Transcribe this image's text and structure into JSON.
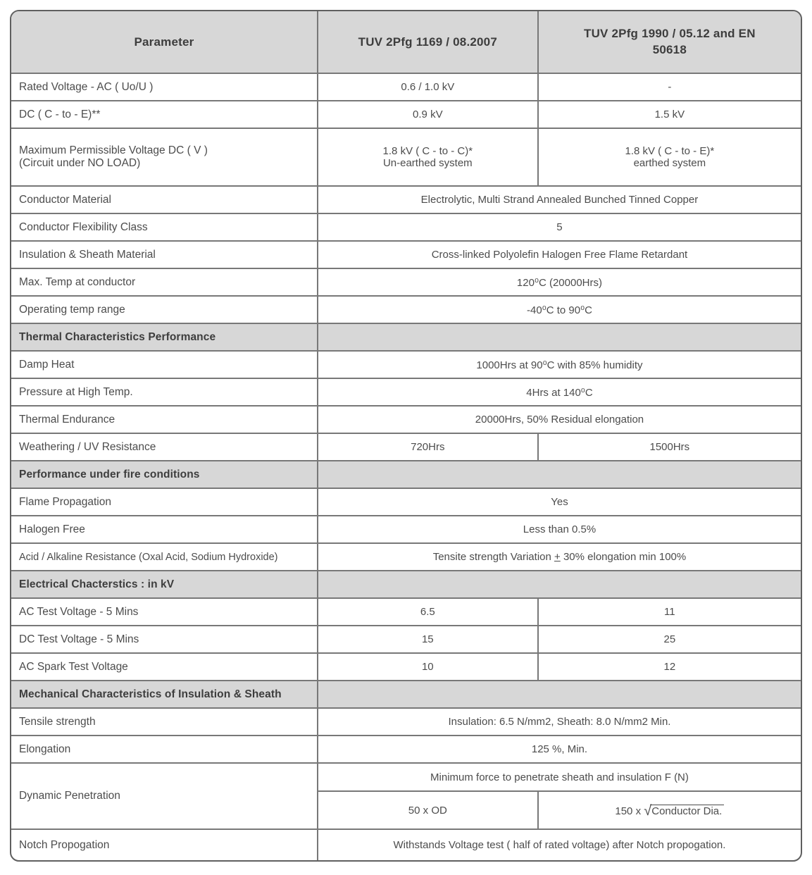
{
  "colors": {
    "header_bg": "#d7d7d7",
    "section_bg": "#d7d7d7",
    "border": "#787878",
    "text": "#4c4c4c",
    "bold_text": "#3d3d3d"
  },
  "header": {
    "col1": "Parameter",
    "col2": "TUV 2Pfg 1169 / 08.2007",
    "col3": "TUV 2Pfg 1990 / 05.12 and EN 50618"
  },
  "rows": {
    "rated_voltage": {
      "param": "Rated Voltage - AC ( Uo/U )",
      "v1": "0.6 / 1.0 kV",
      "v2": "-"
    },
    "dc_c_to_e": {
      "param": "DC ( C - to - E)**",
      "v1": "0.9 kV",
      "v2": "1.5 kV"
    },
    "max_permissible": {
      "param_l1": "Maximum Permissible Voltage DC ( V )",
      "param_l2": "(Circuit under NO LOAD)",
      "v1_l1": "1.8 kV ( C - to - C)*",
      "v1_l2": "Un-earthed system",
      "v2_l1": "1.8 kV ( C - to - E)*",
      "v2_l2": "earthed system"
    },
    "conductor_material": {
      "param": "Conductor Material",
      "value": "Electrolytic, Multi Strand Annealed Bunched Tinned Copper"
    },
    "flexibility_class": {
      "param": "Conductor Flexibility Class",
      "value": "5"
    },
    "insulation_sheath": {
      "param": "Insulation & Sheath Material",
      "value": "Cross-linked Polyolefin Halogen Free Flame Retardant"
    },
    "max_temp": {
      "param": "Max. Temp at conductor",
      "value": "120⁰C (20000Hrs)"
    },
    "operating_temp": {
      "param": "Operating temp range",
      "value": "-40⁰C to 90⁰C"
    },
    "section_thermal": {
      "title": "Thermal Characteristics Performance"
    },
    "damp_heat": {
      "param": "Damp Heat",
      "value": "1000Hrs at 90⁰C with 85% humidity"
    },
    "pressure_high_temp": {
      "param": "Pressure at High Temp.",
      "value": "4Hrs at 140⁰C"
    },
    "thermal_endurance": {
      "param": "Thermal Endurance",
      "value": "20000Hrs, 50% Residual elongation"
    },
    "weathering": {
      "param": "Weathering / UV Resistance",
      "v1": "720Hrs",
      "v2": "1500Hrs"
    },
    "section_fire": {
      "title": "Performance under fire conditions"
    },
    "flame_propagation": {
      "param": "Flame Propagation",
      "value": "Yes"
    },
    "halogen_free": {
      "param": "Halogen Free",
      "value": "Less than 0.5%"
    },
    "acid_alkaline": {
      "param": "Acid / Alkaline Resistance (Oxal Acid, Sodium Hydroxide)",
      "value_pre": "Tensite strength Variation ",
      "value_plus": "+",
      "value_post": " 30% elongation min 100%"
    },
    "section_electrical": {
      "title": "Electrical Chacterstics : in kV"
    },
    "ac_test": {
      "param": "AC Test Voltage - 5 Mins",
      "v1": "6.5",
      "v2": "11"
    },
    "dc_test": {
      "param": "DC Test Voltage - 5 Mins",
      "v1": "15",
      "v2": "25"
    },
    "ac_spark": {
      "param": "AC Spark Test Voltage",
      "v1": "10",
      "v2": "12"
    },
    "section_mechanical": {
      "title": "Mechanical Characteristics of Insulation & Sheath"
    },
    "tensile": {
      "param": "Tensile strength",
      "value": "Insulation: 6.5 N/mm2, Sheath: 8.0 N/mm2 Min."
    },
    "elongation": {
      "param": "Elongation",
      "value": "125 %, Min."
    },
    "dynamic_penetration": {
      "param": "Dynamic Penetration",
      "sub_value": "Minimum force to penetrate sheath and insulation F (N)",
      "v1": "50 x OD",
      "v2_prefix": "150 x ",
      "v2_sqrt": "√",
      "v2_radicand": "Conductor Dia."
    },
    "notch": {
      "param": "Notch Propogation",
      "value": "Withstands Voltage test ( half of rated voltage) after Notch propogation."
    }
  }
}
